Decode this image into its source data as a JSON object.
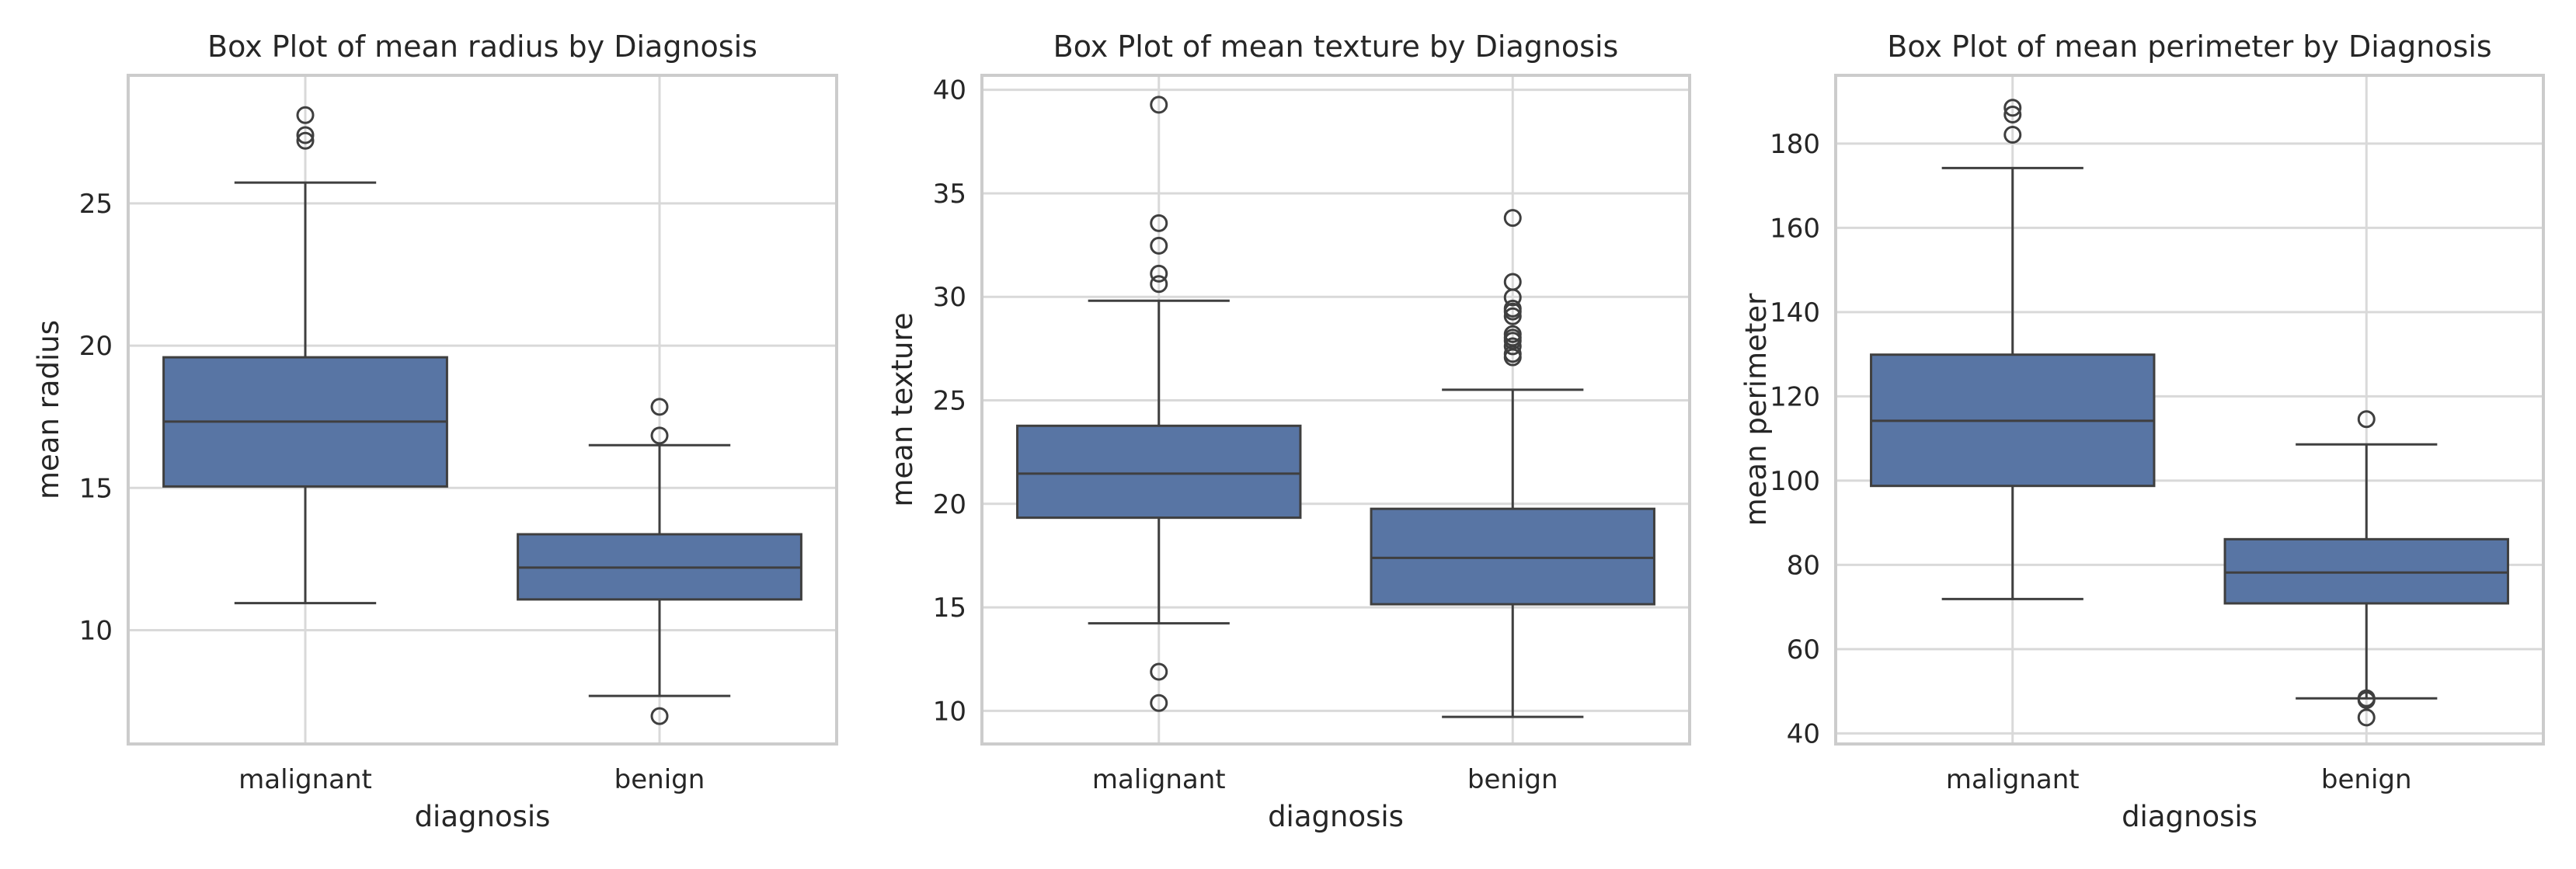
{
  "figure": {
    "background": "#ffffff",
    "box_color": "#5875a4",
    "line_color": "#3f3f3f",
    "grid_color": "#d9d9d9",
    "frame_color": "#cccccc"
  },
  "chart_data": [
    {
      "type": "box",
      "title": "Box Plot of mean radius by Diagnosis",
      "xlabel": "diagnosis",
      "ylabel": "mean radius",
      "categories": [
        "malignant",
        "benign"
      ],
      "ylim": [
        6.0,
        29.5
      ],
      "yticks": [
        10,
        15,
        20,
        25
      ],
      "ytick_labels": [
        "10",
        "15",
        "20",
        "25"
      ],
      "grid": true,
      "boxes": [
        {
          "category": "malignant",
          "whisker_low": 10.95,
          "q1": 15.05,
          "median": 17.33,
          "q3": 19.59,
          "whisker_high": 25.73,
          "outliers": [
            27.2,
            27.4,
            28.1
          ]
        },
        {
          "category": "benign",
          "whisker_low": 7.69,
          "q1": 11.08,
          "median": 12.2,
          "q3": 13.37,
          "whisker_high": 16.5,
          "outliers": [
            6.98,
            16.84,
            17.85
          ]
        }
      ]
    },
    {
      "type": "box",
      "title": "Box Plot of mean texture by Diagnosis",
      "xlabel": "diagnosis",
      "ylabel": "mean texture",
      "categories": [
        "malignant",
        "benign"
      ],
      "ylim": [
        8.4,
        40.7
      ],
      "yticks": [
        10,
        15,
        20,
        25,
        30,
        35,
        40
      ],
      "ytick_labels": [
        "10",
        "15",
        "20",
        "25",
        "30",
        "35",
        "40"
      ],
      "grid": true,
      "boxes": [
        {
          "category": "malignant",
          "whisker_low": 14.23,
          "q1": 19.33,
          "median": 21.46,
          "q3": 23.77,
          "whisker_high": 29.81,
          "outliers": [
            10.38,
            11.89,
            30.62,
            31.12,
            32.47,
            33.56,
            39.28
          ]
        },
        {
          "category": "benign",
          "whisker_low": 9.71,
          "q1": 15.15,
          "median": 17.39,
          "q3": 19.76,
          "whisker_high": 25.51,
          "outliers": [
            27.08,
            27.24,
            27.61,
            27.88,
            28.03,
            28.2,
            29.06,
            29.29,
            29.43,
            29.97,
            30.72,
            33.81
          ]
        }
      ]
    },
    {
      "type": "box",
      "title": "Box Plot of mean perimeter by Diagnosis",
      "xlabel": "diagnosis",
      "ylabel": "mean perimeter",
      "categories": [
        "malignant",
        "benign"
      ],
      "ylim": [
        37.5,
        196.2
      ],
      "yticks": [
        40,
        60,
        80,
        100,
        120,
        140,
        160,
        180
      ],
      "ytick_labels": [
        "40",
        "60",
        "80",
        "100",
        "120",
        "140",
        "160",
        "180"
      ],
      "grid": true,
      "boxes": [
        {
          "category": "malignant",
          "whisker_low": 71.9,
          "q1": 98.75,
          "median": 114.2,
          "q3": 129.9,
          "whisker_high": 174.2,
          "outliers": [
            182.1,
            186.9,
            188.5
          ]
        },
        {
          "category": "benign",
          "whisker_low": 48.34,
          "q1": 70.87,
          "median": 78.18,
          "q3": 86.1,
          "whisker_high": 108.6,
          "outliers": [
            43.79,
            47.92,
            48.34,
            114.6
          ]
        }
      ]
    }
  ]
}
